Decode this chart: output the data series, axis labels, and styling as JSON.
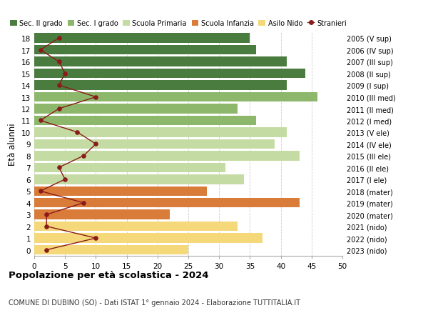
{
  "ages": [
    0,
    1,
    2,
    3,
    4,
    5,
    6,
    7,
    8,
    9,
    10,
    11,
    12,
    13,
    14,
    15,
    16,
    17,
    18
  ],
  "right_labels": [
    "2023 (nido)",
    "2022 (nido)",
    "2021 (nido)",
    "2020 (mater)",
    "2019 (mater)",
    "2018 (mater)",
    "2017 (I ele)",
    "2016 (II ele)",
    "2015 (III ele)",
    "2014 (IV ele)",
    "2013 (V ele)",
    "2012 (I med)",
    "2011 (II med)",
    "2010 (III med)",
    "2009 (I sup)",
    "2008 (II sup)",
    "2007 (III sup)",
    "2006 (IV sup)",
    "2005 (V sup)"
  ],
  "bar_values": [
    25,
    37,
    33,
    22,
    43,
    28,
    34,
    31,
    43,
    39,
    41,
    36,
    33,
    46,
    41,
    44,
    41,
    36,
    35
  ],
  "bar_colors": [
    "#f5d87a",
    "#f5d87a",
    "#f5d87a",
    "#d97c3a",
    "#d97c3a",
    "#d97c3a",
    "#c5dba4",
    "#c5dba4",
    "#c5dba4",
    "#c5dba4",
    "#c5dba4",
    "#8db86b",
    "#8db86b",
    "#8db86b",
    "#4a7c3f",
    "#4a7c3f",
    "#4a7c3f",
    "#4a7c3f",
    "#4a7c3f"
  ],
  "stranieri": [
    2,
    10,
    2,
    2,
    8,
    1,
    5,
    4,
    8,
    10,
    7,
    1,
    4,
    10,
    4,
    5,
    4,
    1,
    4
  ],
  "stranieri_color": "#8b1a1a",
  "xlim": [
    0,
    50
  ],
  "ylabel": "Età alunni",
  "title": "Popolazione per età scolastica - 2024",
  "subtitle": "COMUNE DI DUBINO (SO) - Dati ISTAT 1° gennaio 2024 - Elaborazione TUTTITALIA.IT",
  "legend_labels": [
    "Sec. II grado",
    "Sec. I grado",
    "Scuola Primaria",
    "Scuola Infanzia",
    "Asilo Nido",
    "Stranieri"
  ],
  "legend_colors": [
    "#4a7c3f",
    "#8db86b",
    "#c5dba4",
    "#d97c3a",
    "#f5d87a",
    "#8b1a1a"
  ],
  "bg_color": "#ffffff",
  "grid_color": "#cccccc",
  "xticks": [
    0,
    5,
    10,
    15,
    20,
    25,
    30,
    35,
    40,
    45,
    50
  ]
}
